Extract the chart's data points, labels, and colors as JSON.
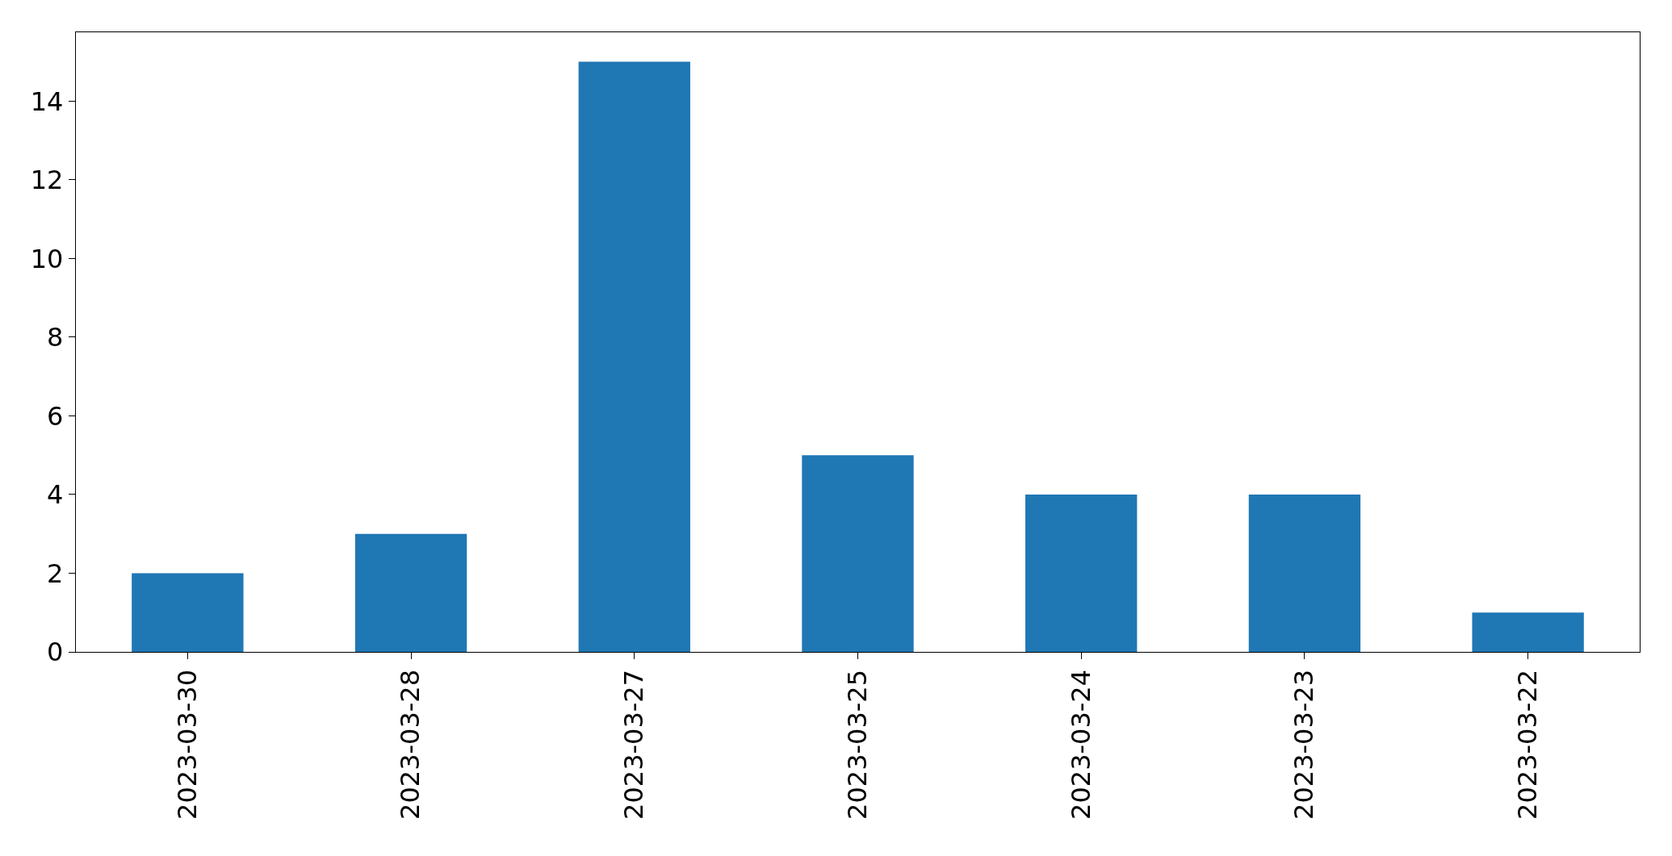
{
  "chart_data": {
    "type": "bar",
    "categories": [
      "2023-03-30",
      "2023-03-28",
      "2023-03-27",
      "2023-03-25",
      "2023-03-24",
      "2023-03-23",
      "2023-03-22"
    ],
    "values": [
      2,
      3,
      15,
      5,
      4,
      4,
      1
    ],
    "color": "#1f77b4",
    "ylim": [
      0,
      15.75
    ],
    "yticks": [
      0,
      2,
      4,
      6,
      8,
      10,
      12,
      14
    ]
  }
}
